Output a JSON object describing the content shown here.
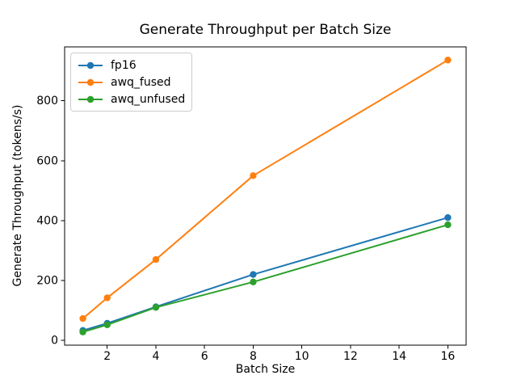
{
  "chart_data": {
    "type": "line",
    "title": "Generate Throughput per Batch Size",
    "xlabel": "Batch Size",
    "ylabel": "Generate Throughput (tokens/s)",
    "x": [
      1,
      2,
      4,
      8,
      16
    ],
    "series": [
      {
        "name": "fp16",
        "color": "#1f77b4",
        "values": [
          33,
          57,
          112,
          220,
          410
        ]
      },
      {
        "name": "awq_fused",
        "color": "#ff7f0e",
        "values": [
          73,
          142,
          270,
          550,
          936
        ]
      },
      {
        "name": "awq_unfused",
        "color": "#2ca02c",
        "values": [
          28,
          52,
          110,
          195,
          386
        ]
      }
    ],
    "xlim": [
      0.25,
      16.75
    ],
    "ylim": [
      -16,
      980
    ],
    "xticks": [
      2,
      4,
      6,
      8,
      10,
      12,
      14,
      16
    ],
    "yticks": [
      0,
      200,
      400,
      600,
      800
    ],
    "legend_position": "upper-left",
    "grid": false,
    "marker": "o",
    "axis_color": "#000000",
    "background_color": "#ffffff"
  }
}
